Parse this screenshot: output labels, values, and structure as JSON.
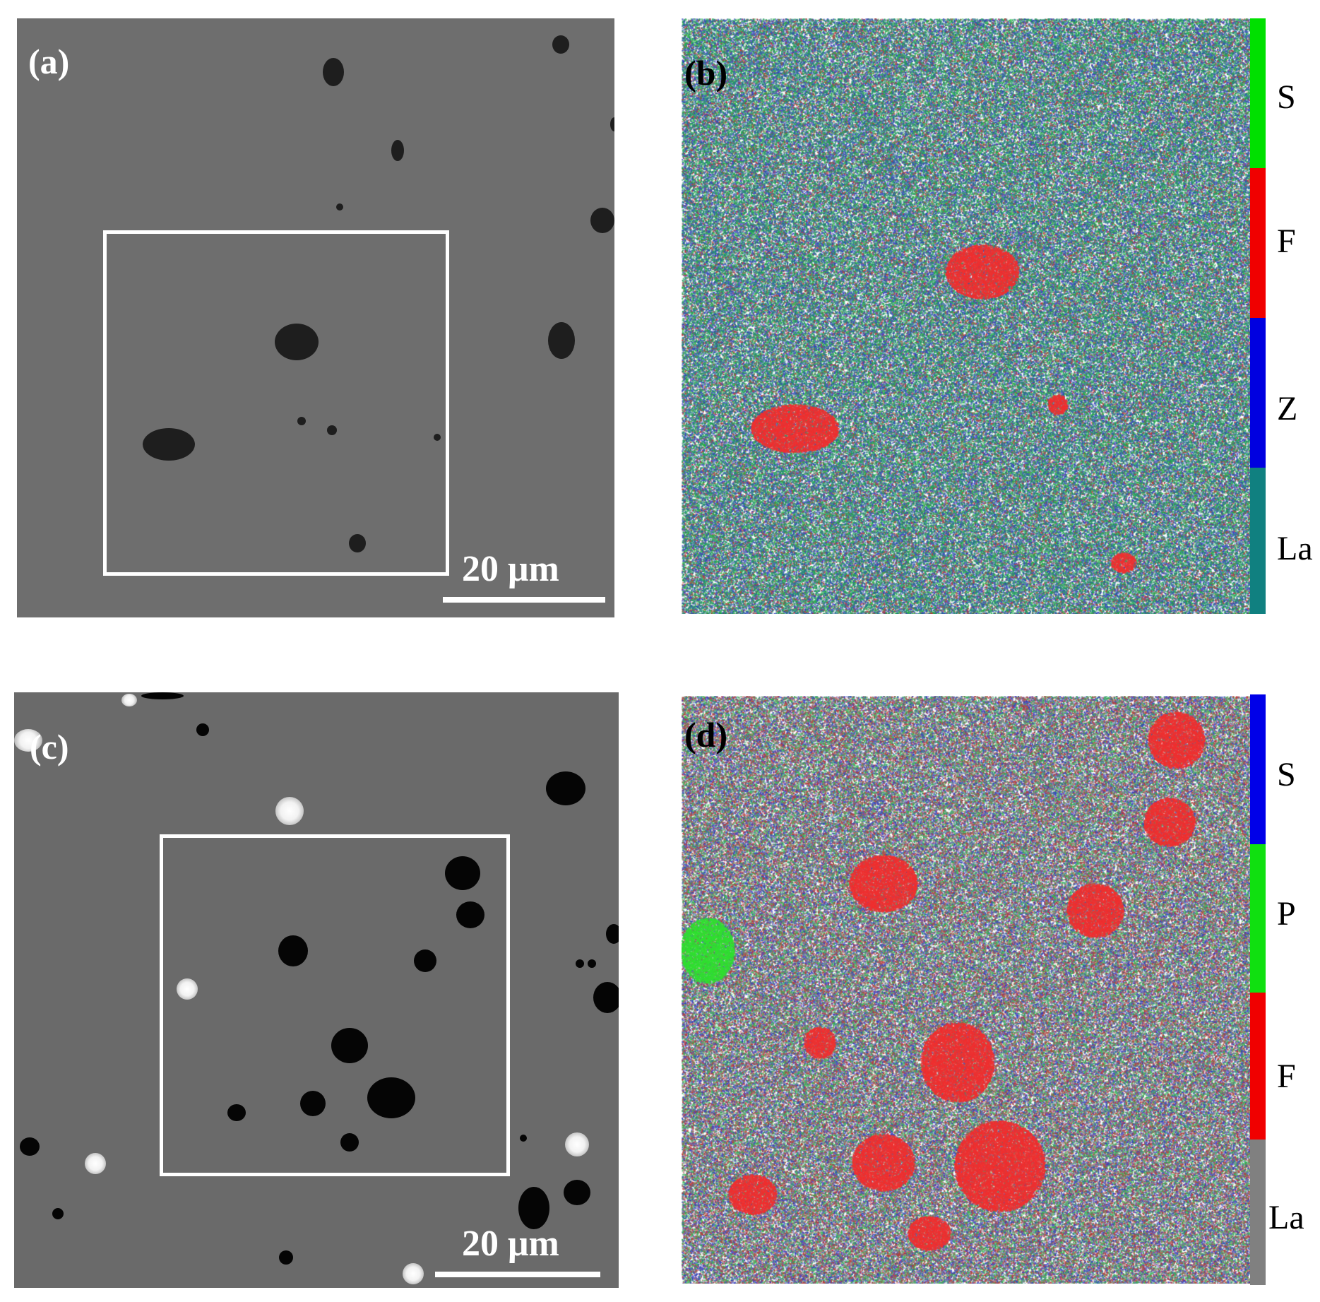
{
  "panels": {
    "a": {
      "label": "(a)",
      "scale_bar": "20 μm"
    },
    "b": {
      "label": "(b)",
      "legend": [
        {
          "element": "S",
          "color": "#00e000"
        },
        {
          "element": "F",
          "color": "#f00000"
        },
        {
          "element": "Z",
          "color": "#0000e0"
        },
        {
          "element": "La",
          "color": "#108080"
        }
      ]
    },
    "c": {
      "label": "(c)",
      "scale_bar": "20 μm"
    },
    "d": {
      "label": "(d)",
      "legend": [
        {
          "element": "S",
          "color": "#0000e8"
        },
        {
          "element": "P",
          "color": "#10e010"
        },
        {
          "element": "F",
          "color": "#f00000"
        },
        {
          "element": "La",
          "color": "#808080"
        }
      ]
    }
  }
}
